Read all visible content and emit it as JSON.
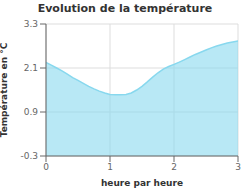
{
  "chart_data": {
    "type": "area",
    "title": "Evolution de la température",
    "x_label": "heure par heure",
    "y_label": "Température en °C",
    "x": [
      0,
      0.083,
      0.167,
      0.25,
      0.333,
      0.417,
      0.5,
      0.583,
      0.667,
      0.75,
      0.833,
      0.917,
      1.0,
      1.083,
      1.167,
      1.25,
      1.333,
      1.417,
      1.5,
      1.583,
      1.667,
      1.75,
      1.833,
      1.917,
      2.0,
      2.083,
      2.167,
      2.25,
      2.333,
      2.417,
      2.5,
      2.583,
      2.667,
      2.75,
      2.833,
      2.917,
      3.0
    ],
    "values": [
      2.25,
      2.18,
      2.1,
      2.02,
      1.93,
      1.84,
      1.76,
      1.68,
      1.6,
      1.53,
      1.47,
      1.42,
      1.38,
      1.37,
      1.37,
      1.38,
      1.42,
      1.5,
      1.6,
      1.72,
      1.85,
      1.97,
      2.07,
      2.14,
      2.2,
      2.26,
      2.33,
      2.4,
      2.47,
      2.53,
      2.59,
      2.65,
      2.7,
      2.74,
      2.78,
      2.81,
      2.84
    ],
    "color": "#88d8ee",
    "xlim": [
      0,
      3
    ],
    "ylim": [
      -0.3,
      3.3
    ],
    "xticks": [
      0,
      1,
      2,
      3
    ],
    "yticks": [
      -0.3,
      0.9,
      2.1,
      3.3
    ],
    "grid": true
  }
}
